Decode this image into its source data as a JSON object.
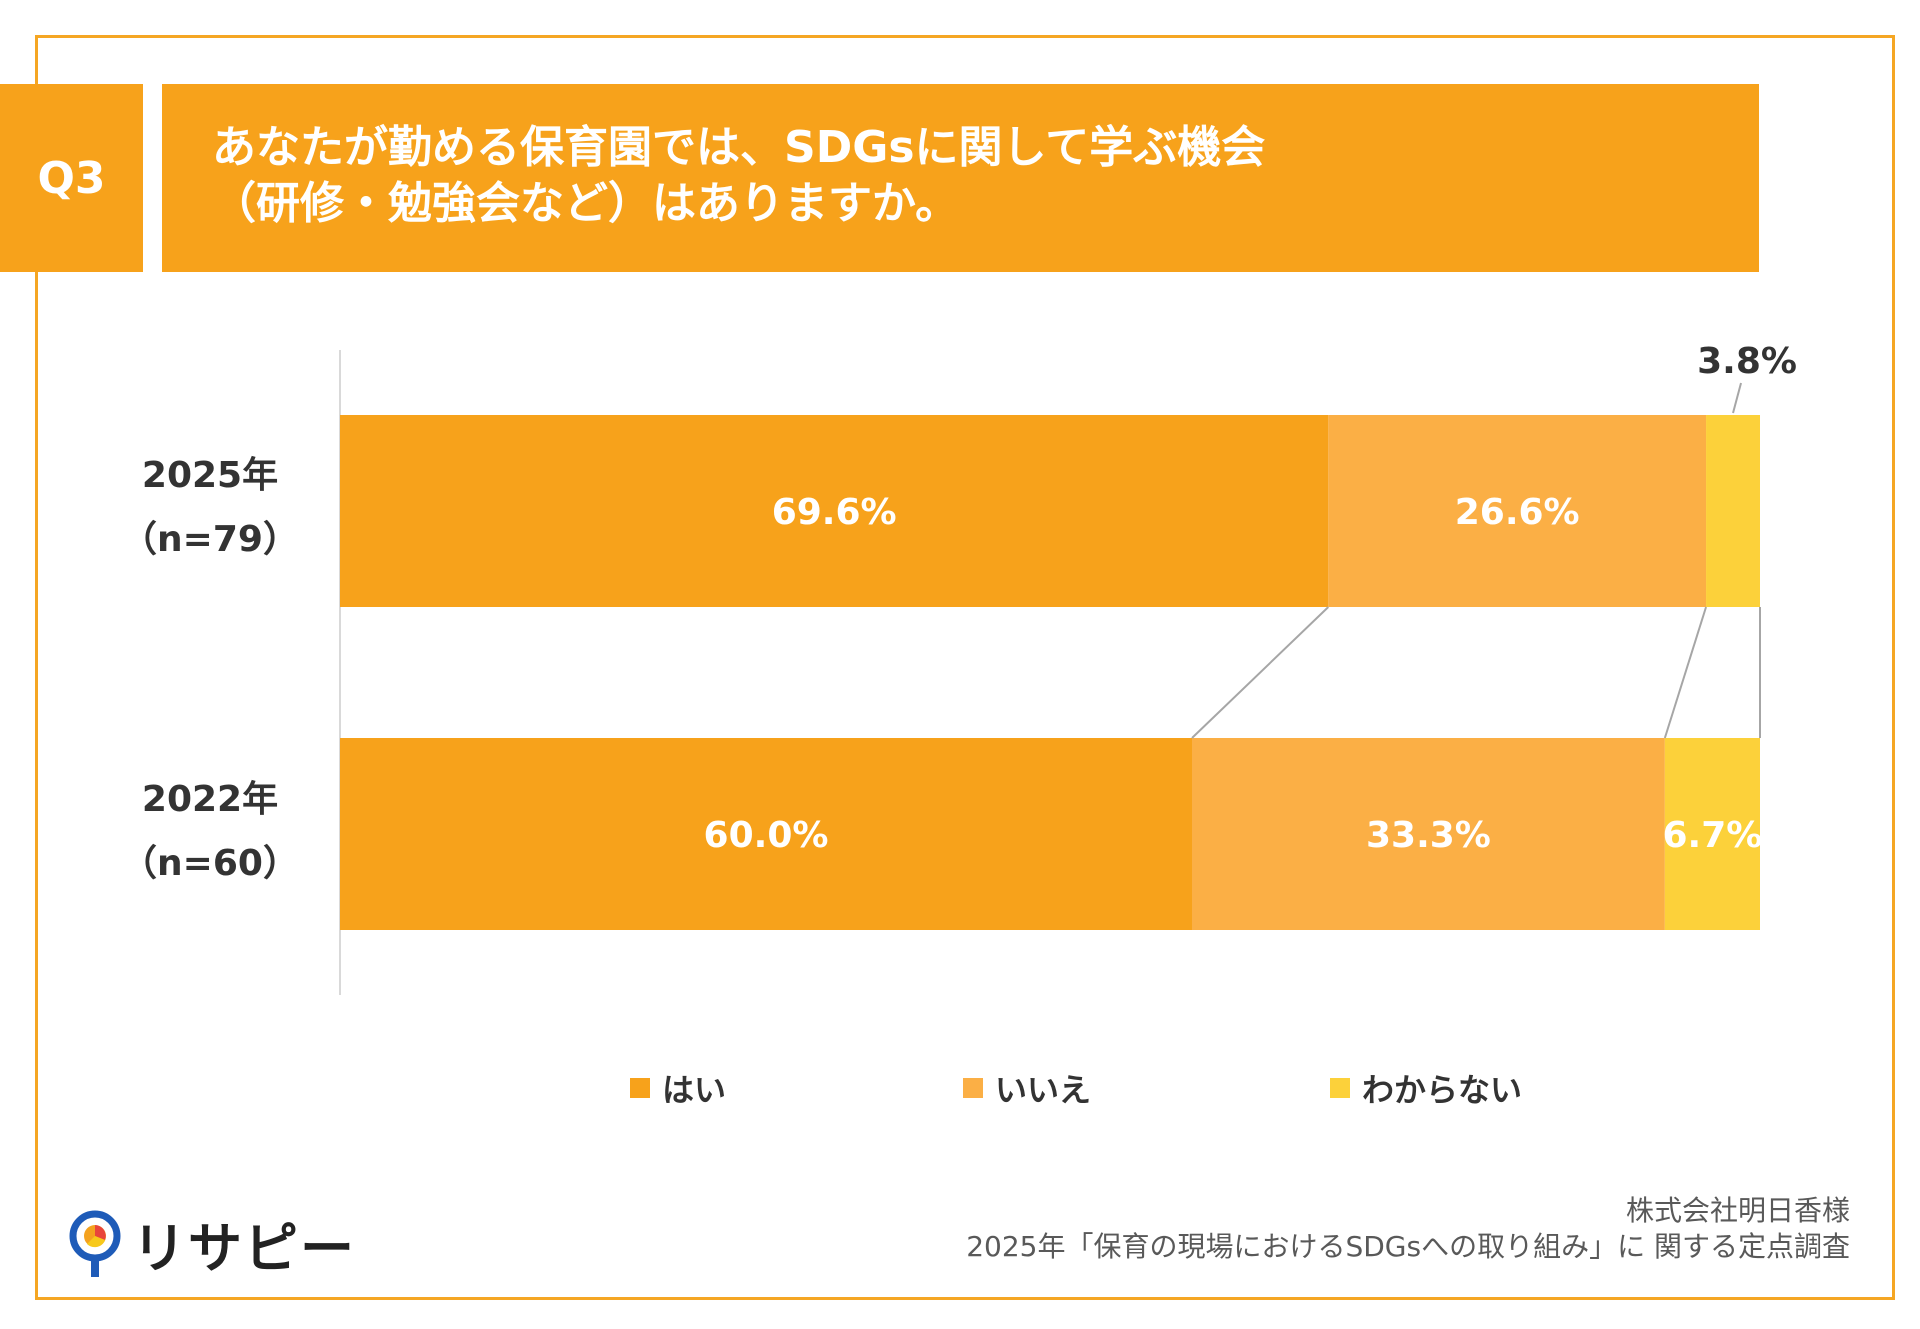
{
  "question": {
    "number": "Q3",
    "line1": "あなたが勤める保育園では、SDGsに関して学ぶ機会",
    "line2": "（研修・勉強会など）はありますか。"
  },
  "rows": [
    {
      "year": "2025年",
      "n": "（n=79）"
    },
    {
      "year": "2022年",
      "n": "（n=60）"
    }
  ],
  "chart_data": {
    "type": "bar",
    "orientation": "horizontal",
    "stacked": true,
    "percent": true,
    "categories": [
      "2025年（n=79）",
      "2022年（n=60）"
    ],
    "series": [
      {
        "name": "はい",
        "color": "#F7A21B",
        "values": [
          69.6,
          60.0
        ],
        "labels": [
          "69.6%",
          "60.0%"
        ]
      },
      {
        "name": "いいえ",
        "color": "#FBAF45",
        "values": [
          26.6,
          33.3
        ],
        "labels": [
          "26.6%",
          "33.3%"
        ]
      },
      {
        "name": "わからない",
        "color": "#FCD13A",
        "values": [
          3.8,
          6.7
        ],
        "labels": [
          "3.8%",
          "6.7%"
        ]
      }
    ],
    "xlim": [
      0,
      100
    ],
    "legend_position": "bottom"
  },
  "legend": [
    "はい",
    "いいえ",
    "わからない"
  ],
  "colors": {
    "primary": "#F7A21B",
    "secondary": "#FBAF45",
    "tertiary": "#FCD13A",
    "frame": "#F5A623"
  },
  "footer": {
    "company": "株式会社明日香様",
    "survey": "2025年「保育の現場におけるSDGsへの取り組み」に 関する定点調査",
    "logo": "リサピー"
  }
}
